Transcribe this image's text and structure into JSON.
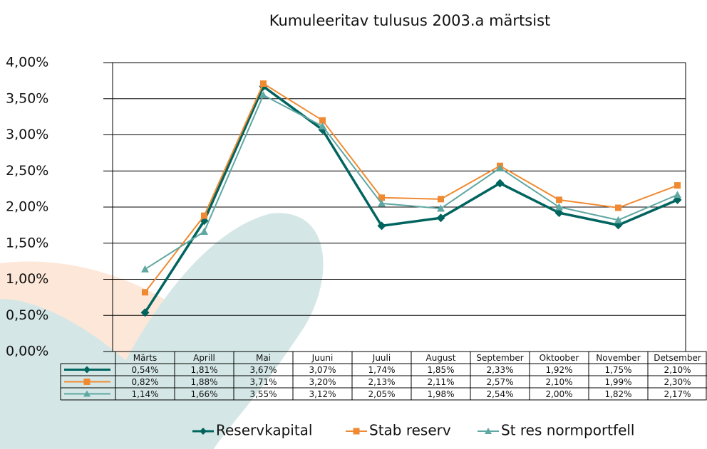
{
  "chart_data": {
    "type": "line",
    "title": "Kumuleeritav tulusus 2003.a märtsist",
    "categories": [
      "Märts",
      "Aprill",
      "Mai",
      "Juuni",
      "Juuli",
      "August",
      "September",
      "Oktoober",
      "November",
      "Detsember"
    ],
    "series": [
      {
        "name": "Reservkapital",
        "color": "#00645f",
        "values": [
          0.54,
          1.81,
          3.67,
          3.07,
          1.74,
          1.85,
          2.33,
          1.92,
          1.75,
          2.1
        ],
        "value_labels": [
          "0,54%",
          "1,81%",
          "3,67%",
          "3,07%",
          "1,74%",
          "1,85%",
          "2,33%",
          "1,92%",
          "1,75%",
          "2,10%"
        ]
      },
      {
        "name": "Stab reserv",
        "color": "#f08a32",
        "values": [
          0.82,
          1.88,
          3.71,
          3.2,
          2.13,
          2.11,
          2.57,
          2.1,
          1.99,
          2.3
        ],
        "value_labels": [
          "0,82%",
          "1,88%",
          "3,71%",
          "3,20%",
          "2,13%",
          "2,11%",
          "2,57%",
          "2,10%",
          "1,99%",
          "2,30%"
        ]
      },
      {
        "name": "St res normportfell",
        "color": "#5fa7a2",
        "values": [
          1.14,
          1.66,
          3.55,
          3.12,
          2.05,
          1.98,
          2.54,
          2.0,
          1.82,
          2.17
        ],
        "value_labels": [
          "1,14%",
          "1,66%",
          "3,55%",
          "3,12%",
          "2,05%",
          "1,98%",
          "2,54%",
          "2,00%",
          "1,82%",
          "2,17%"
        ]
      }
    ],
    "ylim": [
      0,
      4
    ],
    "yticks": [
      {
        "value": 0,
        "label": "0,00%"
      },
      {
        "value": 0.5,
        "label": "0,50%"
      },
      {
        "value": 1,
        "label": "1,00%"
      },
      {
        "value": 1.5,
        "label": "1,50%"
      },
      {
        "value": 2,
        "label": "2,00%"
      },
      {
        "value": 2.5,
        "label": "2,50%"
      },
      {
        "value": 3,
        "label": "3,00%"
      },
      {
        "value": 3.5,
        "label": "3,50%"
      },
      {
        "value": 4,
        "label": "4,00%"
      }
    ],
    "grid": true
  }
}
